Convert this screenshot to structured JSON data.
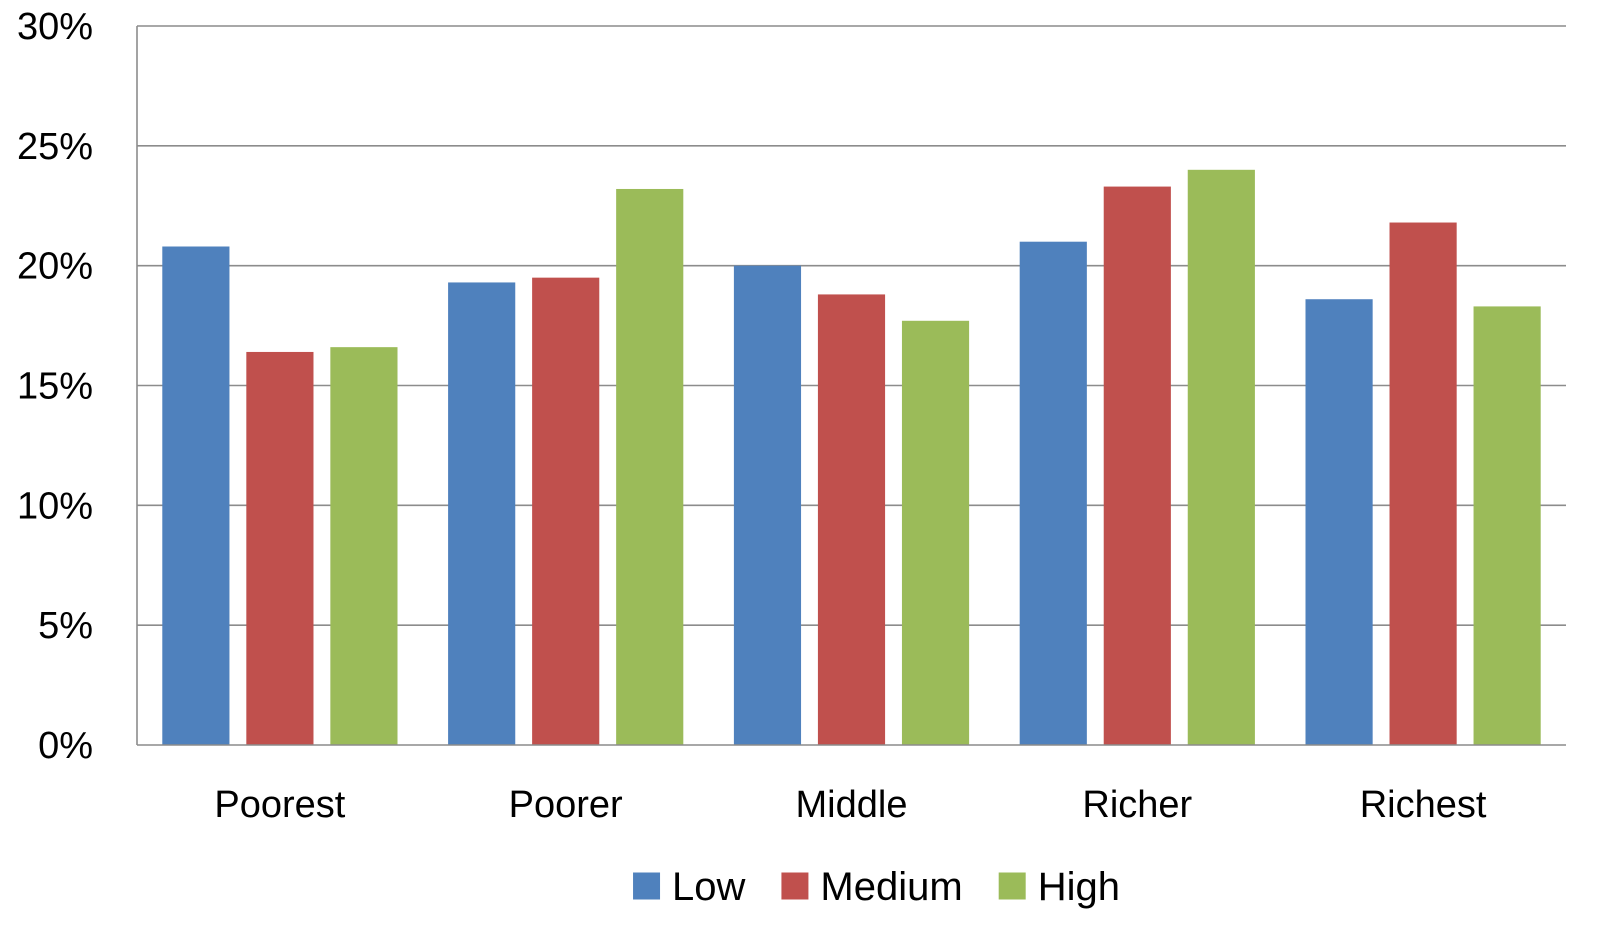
{
  "chart_data": {
    "type": "bar",
    "categories": [
      "Poorest",
      "Poorer",
      "Middle",
      "Richer",
      "Richest"
    ],
    "series": [
      {
        "name": "Low",
        "color": "#4f81bd",
        "values": [
          20.8,
          19.3,
          20.0,
          21.0,
          18.6
        ]
      },
      {
        "name": "Medium",
        "color": "#c0504d",
        "values": [
          16.4,
          19.5,
          18.8,
          23.3,
          21.8
        ]
      },
      {
        "name": "High",
        "color": "#9bbb59",
        "values": [
          16.6,
          23.2,
          17.7,
          24.0,
          18.3
        ]
      }
    ],
    "ylim": [
      0,
      30
    ],
    "yticks": [
      0,
      5,
      10,
      15,
      20,
      25,
      30
    ],
    "ytick_labels": [
      "0%",
      "5%",
      "10%",
      "15%",
      "20%",
      "25%",
      "30%"
    ],
    "title": "",
    "xlabel": "",
    "ylabel": "",
    "grid": true,
    "legend_position": "bottom"
  }
}
